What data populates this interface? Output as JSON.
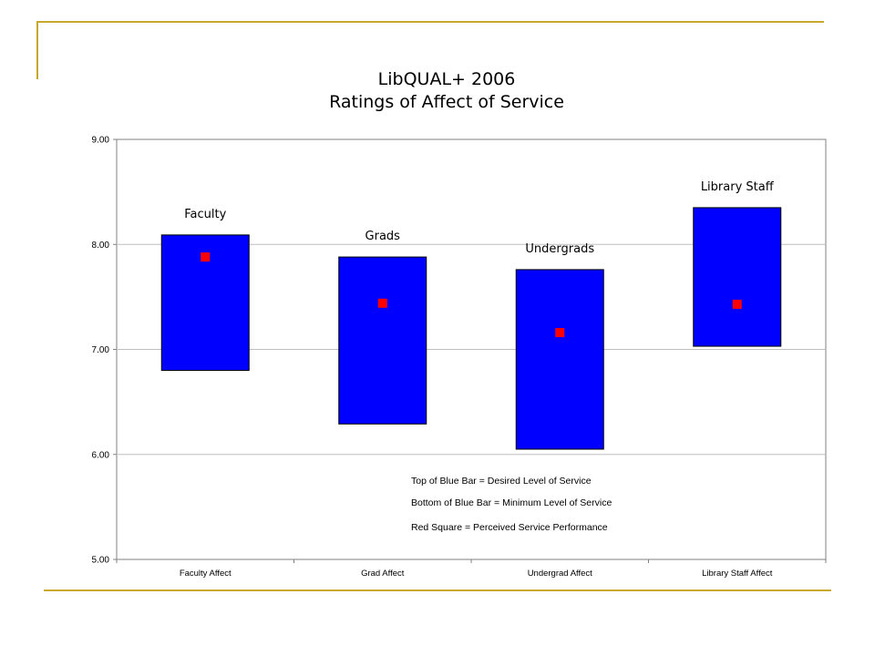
{
  "chart_data": {
    "type": "range-bar",
    "title": "LibQUAL+ 2006",
    "subtitle": "Ratings of Affect of Service",
    "xlabel": "",
    "ylabel": "",
    "ylim": [
      5,
      9
    ],
    "y_ticks": [
      "5.00",
      "6.00",
      "7.00",
      "8.00",
      "9.00"
    ],
    "grid": "horizontal",
    "categories": [
      "Faculty Affect",
      "Grad Affect",
      "Undergrad Affect",
      "Library Staff Affect"
    ],
    "group_labels": [
      "Faculty",
      "Grads",
      "Undergrads",
      "Library Staff"
    ],
    "series": [
      {
        "name": "Minimum Level of Service",
        "values": [
          6.8,
          6.29,
          6.05,
          7.03
        ]
      },
      {
        "name": "Desired Level of Service",
        "values": [
          8.09,
          7.88,
          7.76,
          8.35
        ]
      },
      {
        "name": "Perceived Service Performance",
        "values": [
          7.88,
          7.44,
          7.16,
          7.43
        ]
      }
    ],
    "annotations": [
      "Top of Blue Bar = Desired Level of Service",
      "Bottom of Blue Bar = Minimum Level of Service",
      "Red Square = Perceived Service Performance"
    ],
    "colors": {
      "bar": "#0000ff",
      "marker": "#ff0000",
      "grid": "#bfbfbf",
      "accent": "#c8a82a"
    }
  }
}
